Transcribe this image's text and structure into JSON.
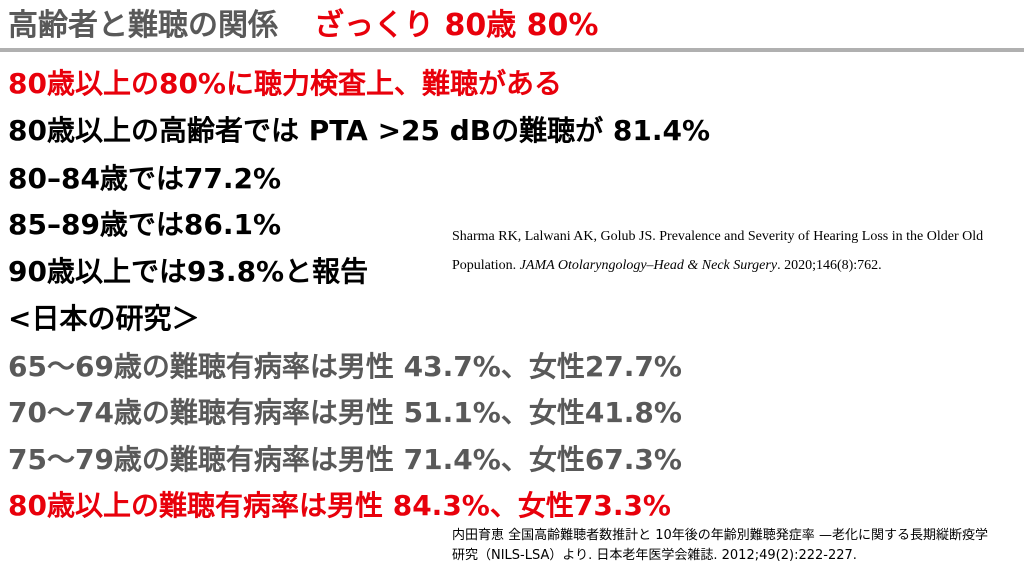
{
  "header": {
    "title": "高齢者と難聴の関係",
    "highlight": "ざっくり 80歳 80%"
  },
  "lines": [
    "80歳以上の80%に聴力検査上、難聴がある",
    "80歳以上の高齢者では PTA >25 dBの難聴が 81.4%",
    "80–84歳では77.2%",
    "85–89歳では86.1%",
    "90歳以上では93.8%と報告",
    "<日本の研究＞",
    "65〜69歳の難聴有病率は男性 43.7%、女性27.7%",
    "70〜74歳の難聴有病率は男性 51.1%、女性41.8%",
    "75〜79歳の難聴有病率は男性 71.4%、女性67.3%",
    "80歳以上の難聴有病率は男性 84.3%、女性73.3%"
  ],
  "citations": {
    "sharma": [
      "Sharma RK, Lalwani AK, Golub JS. Prevalence and Severity of Hearing Loss in the Older Old Population. ",
      "JAMA Otolaryngology–Head & Neck Surgery",
      ". 2020;146(8):762."
    ],
    "uchida": "内田育恵 全国高齢難聴者数推計と 10年後の年齢別難聴発症率 —老化に関する長期縦断疫学研究（NILS-LSA）より. 日本老年医学会雑誌. 2012;49(2):222-227."
  }
}
